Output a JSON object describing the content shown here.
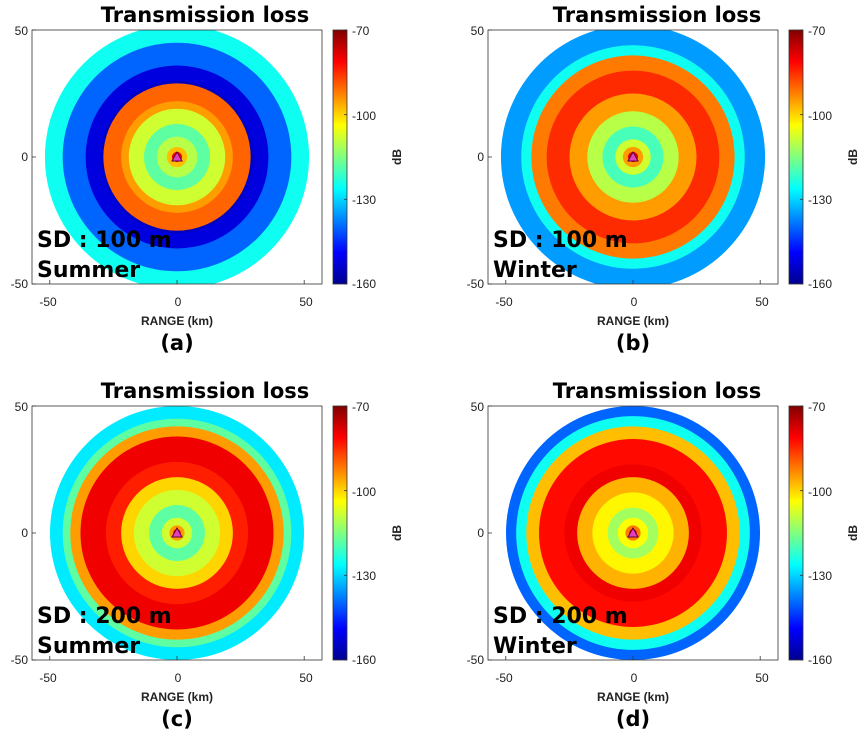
{
  "chart_data": [
    {
      "type": "heatmap",
      "title": "Transmission loss",
      "xlabel": "RANGE (km)",
      "ylabel": "",
      "xlim": [
        -57,
        57
      ],
      "ylim": [
        -50,
        50
      ],
      "x_ticks": [
        "-50",
        "0",
        "50"
      ],
      "y_ticks": [
        "50",
        "0",
        "-50"
      ],
      "colorbar": {
        "label": "dB",
        "range": [
          -160,
          -70
        ],
        "ticks": [
          "-70",
          "-100",
          "-130",
          "-160"
        ]
      },
      "annotation_line1": "SD : 100 m",
      "annotation_line2": "Summer",
      "caption": "(a)",
      "source_marker": "magenta-triangle",
      "rings": [
        {
          "r": 52,
          "tl": -125
        },
        {
          "r": 45,
          "tl": -140
        },
        {
          "r": 36,
          "tl": -152
        },
        {
          "r": 30,
          "tl": -155
        },
        {
          "r": 29,
          "tl": -90
        },
        {
          "r": 22,
          "tl": -95
        },
        {
          "r": 19,
          "tl": -108
        },
        {
          "r": 13,
          "tl": -118
        },
        {
          "r": 8,
          "tl": -110
        },
        {
          "r": 4,
          "tl": -98
        },
        {
          "r": 2,
          "tl": -80
        }
      ]
    },
    {
      "type": "heatmap",
      "title": "Transmission loss",
      "xlabel": "RANGE (km)",
      "ylabel": "",
      "xlim": [
        -57,
        57
      ],
      "ylim": [
        -50,
        50
      ],
      "x_ticks": [
        "-50",
        "0",
        "50"
      ],
      "y_ticks": [
        "50",
        "0",
        "-50"
      ],
      "colorbar": {
        "label": "dB",
        "range": [
          -160,
          -70
        ],
        "ticks": [
          "-70",
          "-100",
          "-130",
          "-160"
        ]
      },
      "annotation_line1": "SD : 100 m",
      "annotation_line2": "Winter",
      "caption": "(b)",
      "source_marker": "magenta-triangle",
      "rings": [
        {
          "r": 52,
          "tl": -135
        },
        {
          "r": 44,
          "tl": -125
        },
        {
          "r": 40,
          "tl": -92
        },
        {
          "r": 34,
          "tl": -85
        },
        {
          "r": 25,
          "tl": -95
        },
        {
          "r": 18,
          "tl": -110
        },
        {
          "r": 12,
          "tl": -120
        },
        {
          "r": 7,
          "tl": -108
        },
        {
          "r": 4,
          "tl": -95
        },
        {
          "r": 2,
          "tl": -78
        }
      ]
    },
    {
      "type": "heatmap",
      "title": "Transmission loss",
      "xlabel": "RANGE (km)",
      "ylabel": "",
      "xlim": [
        -57,
        57
      ],
      "ylim": [
        -50,
        50
      ],
      "x_ticks": [
        "-50",
        "0",
        "50"
      ],
      "y_ticks": [
        "50",
        "0",
        "-50"
      ],
      "colorbar": {
        "label": "dB",
        "range": [
          -160,
          -70
        ],
        "ticks": [
          "-70",
          "-100",
          "-130",
          "-160"
        ]
      },
      "annotation_line1": "SD : 200 m",
      "annotation_line2": "Summer",
      "caption": "(c)",
      "source_marker": "magenta-triangle",
      "rings": [
        {
          "r": 50,
          "tl": -128
        },
        {
          "r": 45,
          "tl": -118
        },
        {
          "r": 42,
          "tl": -95
        },
        {
          "r": 38,
          "tl": -80
        },
        {
          "r": 28,
          "tl": -84
        },
        {
          "r": 22,
          "tl": -100
        },
        {
          "r": 17,
          "tl": -108
        },
        {
          "r": 11,
          "tl": -118
        },
        {
          "r": 6,
          "tl": -108
        },
        {
          "r": 3,
          "tl": -95
        },
        {
          "r": 1.5,
          "tl": -78
        }
      ]
    },
    {
      "type": "heatmap",
      "title": "Transmission loss",
      "xlabel": "RANGE (km)",
      "ylabel": "",
      "xlim": [
        -57,
        57
      ],
      "ylim": [
        -50,
        50
      ],
      "x_ticks": [
        "-50",
        "0",
        "50"
      ],
      "y_ticks": [
        "50",
        "0",
        "-50"
      ],
      "colorbar": {
        "label": "dB",
        "range": [
          -160,
          -70
        ],
        "ticks": [
          "-70",
          "-100",
          "-130",
          "-160"
        ]
      },
      "annotation_line1": "SD : 200 m",
      "annotation_line2": "Winter",
      "caption": "(d)",
      "source_marker": "magenta-triangle",
      "rings": [
        {
          "r": 50,
          "tl": -140
        },
        {
          "r": 46,
          "tl": -125
        },
        {
          "r": 42,
          "tl": -98
        },
        {
          "r": 37,
          "tl": -82
        },
        {
          "r": 27,
          "tl": -80
        },
        {
          "r": 22,
          "tl": -97
        },
        {
          "r": 16,
          "tl": -103
        },
        {
          "r": 10,
          "tl": -112
        },
        {
          "r": 6,
          "tl": -104
        },
        {
          "r": 3,
          "tl": -92
        },
        {
          "r": 1.5,
          "tl": -78
        }
      ]
    }
  ],
  "colors": {
    "source_marker": "#e040c0",
    "colormap": [
      "#00008f",
      "#0000ff",
      "#0080ff",
      "#00ffff",
      "#80ff80",
      "#ffff00",
      "#ff8000",
      "#ff0000",
      "#800000"
    ]
  }
}
